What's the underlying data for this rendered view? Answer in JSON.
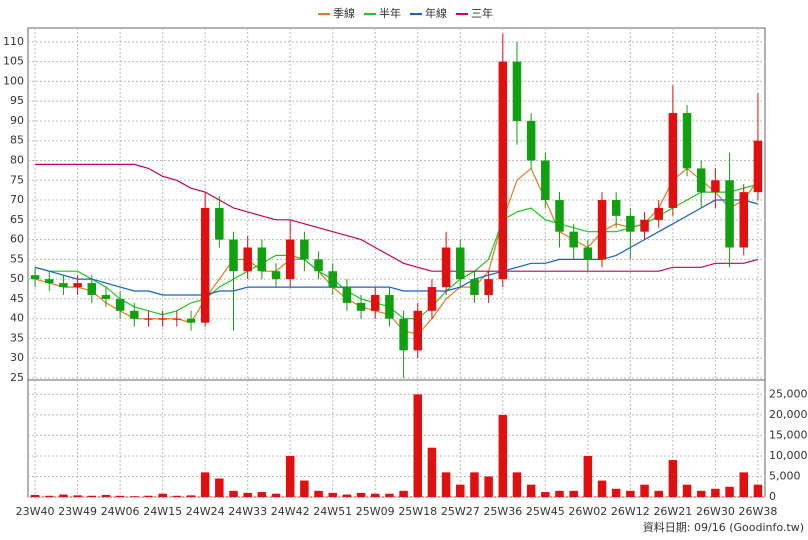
{
  "chart_data": {
    "type": "candlestick",
    "legend": [
      "季線",
      "半年",
      "年線",
      "三年"
    ],
    "footer": "資料日期: 09/16 (Goodinfo.tw)",
    "categories": [
      "23W40",
      null,
      null,
      "23W49",
      null,
      null,
      "24W06",
      null,
      null,
      "24W15",
      null,
      null,
      "24W24",
      null,
      null,
      "24W33",
      null,
      null,
      "24W42",
      null,
      null,
      "24W51",
      null,
      null,
      "25W09",
      null,
      null,
      "25W18",
      null,
      null,
      "25W27",
      null,
      null,
      "25W36",
      null,
      null,
      "25W45",
      null,
      null,
      "26W02",
      null,
      null,
      "26W12",
      null,
      null,
      "26W21",
      null,
      null,
      "26W30",
      null,
      null,
      "26W38"
    ],
    "open": [
      51,
      50,
      49,
      48,
      49,
      46,
      45,
      42,
      40,
      40,
      40,
      40,
      39,
      68,
      60,
      52,
      58,
      52,
      50,
      60,
      55,
      52,
      48,
      44,
      42,
      46,
      40,
      32,
      42,
      48,
      58,
      50,
      46,
      50,
      105,
      90,
      80,
      70,
      62,
      58,
      55,
      70,
      66,
      62,
      65,
      68,
      92,
      78,
      72,
      75,
      58,
      72
    ],
    "high": [
      53,
      52,
      51,
      51,
      51,
      48,
      47,
      44,
      42,
      42,
      42,
      42,
      72,
      71,
      62,
      61,
      60,
      54,
      65,
      62,
      57,
      54,
      50,
      46,
      48,
      48,
      42,
      44,
      50,
      62,
      60,
      52,
      52,
      112,
      110,
      92,
      82,
      72,
      64,
      60,
      72,
      72,
      68,
      67,
      70,
      99,
      94,
      80,
      78,
      82,
      74,
      97
    ],
    "low": [
      48,
      47,
      46,
      46,
      44,
      43,
      40,
      38,
      38,
      38,
      38,
      37,
      38,
      58,
      37,
      50,
      50,
      48,
      48,
      52,
      50,
      46,
      42,
      40,
      40,
      38,
      25,
      30,
      40,
      46,
      48,
      44,
      44,
      48,
      84,
      78,
      68,
      58,
      55,
      52,
      53,
      63,
      55,
      60,
      63,
      66,
      76,
      68,
      68,
      53,
      56,
      70
    ],
    "close": [
      50,
      49,
      48,
      49,
      46,
      45,
      42,
      40,
      40,
      40,
      40,
      39,
      68,
      60,
      52,
      58,
      52,
      50,
      60,
      55,
      52,
      48,
      44,
      42,
      46,
      40,
      32,
      42,
      48,
      58,
      50,
      46,
      50,
      105,
      90,
      80,
      70,
      62,
      58,
      55,
      70,
      66,
      62,
      65,
      68,
      92,
      78,
      72,
      75,
      58,
      72,
      85
    ],
    "up_color": "#e01010",
    "down_color": "#10a010",
    "series": [
      {
        "name": "季線",
        "color": "#e07b20",
        "values": [
          50,
          49,
          48,
          48,
          47,
          44,
          42,
          40,
          40,
          40,
          40,
          39,
          45,
          50,
          55,
          55,
          52,
          52,
          55,
          55,
          52,
          48,
          45,
          43,
          42,
          41,
          37,
          36,
          40,
          45,
          48,
          48,
          52,
          65,
          75,
          78,
          70,
          62,
          60,
          58,
          62,
          64,
          63,
          64,
          68,
          75,
          78,
          75,
          72,
          68,
          70,
          75
        ]
      },
      {
        "name": "半年",
        "color": "#19c819",
        "values": [
          53,
          52,
          52,
          52,
          50,
          48,
          45,
          43,
          42,
          41,
          42,
          44,
          45,
          48,
          50,
          52,
          54,
          56,
          56,
          55,
          52,
          50,
          47,
          45,
          44,
          43,
          40,
          40,
          43,
          47,
          50,
          52,
          55,
          65,
          67,
          68,
          65,
          64,
          63,
          62,
          62,
          62,
          63,
          64,
          66,
          68,
          70,
          72,
          72,
          72,
          73,
          74
        ]
      },
      {
        "name": "年線",
        "color": "#1060d0",
        "values": [
          53,
          52,
          51,
          50,
          50,
          49,
          48,
          47,
          47,
          46,
          46,
          46,
          46,
          47,
          47,
          48,
          48,
          48,
          48,
          48,
          48,
          48,
          48,
          48,
          48,
          48,
          47,
          47,
          47,
          47,
          48,
          50,
          51,
          52,
          53,
          54,
          54,
          55,
          55,
          55,
          55,
          56,
          58,
          60,
          62,
          64,
          66,
          68,
          70,
          70,
          70,
          69
        ]
      },
      {
        "name": "三年",
        "color": "#c8005a",
        "values": [
          79,
          79,
          79,
          79,
          79,
          79,
          79,
          79,
          78,
          76,
          75,
          73,
          72,
          70,
          68,
          67,
          66,
          65,
          65,
          64,
          63,
          62,
          61,
          60,
          58,
          56,
          54,
          53,
          52,
          52,
          52,
          52,
          52,
          52,
          52,
          52,
          52,
          52,
          52,
          52,
          52,
          52,
          52,
          52,
          52,
          53,
          53,
          53,
          54,
          54,
          54,
          55
        ]
      }
    ],
    "volume": [
      500,
      300,
      600,
      400,
      300,
      500,
      300,
      200,
      300,
      800,
      300,
      400,
      6000,
      4500,
      1500,
      1000,
      1200,
      800,
      10000,
      4000,
      1500,
      1000,
      600,
      1000,
      800,
      800,
      1500,
      25000,
      12000,
      6000,
      3000,
      6000,
      5000,
      20000,
      6000,
      3000,
      1200,
      1500,
      1500,
      10000,
      4000,
      2000,
      1500,
      3000,
      1500,
      9000,
      3000,
      1500,
      2000,
      2500,
      6000,
      3000
    ],
    "volume_color": "#e01010",
    "ylim": [
      24.5,
      113.5
    ],
    "yticks": [
      25,
      30,
      35,
      40,
      45,
      50,
      55,
      60,
      65,
      70,
      75,
      80,
      85,
      90,
      95,
      100,
      105,
      110
    ],
    "y2lim": [
      0,
      28500
    ],
    "y2ticks": [
      0,
      {
        "value": 5000,
        "label": "5,000"
      },
      {
        "value": 10000,
        "label": "10,000"
      },
      {
        "value": 15000,
        "label": "15,000"
      },
      {
        "value": 20000,
        "label": "20,000"
      },
      {
        "value": 25000,
        "label": "25,000"
      }
    ],
    "grid": true
  }
}
